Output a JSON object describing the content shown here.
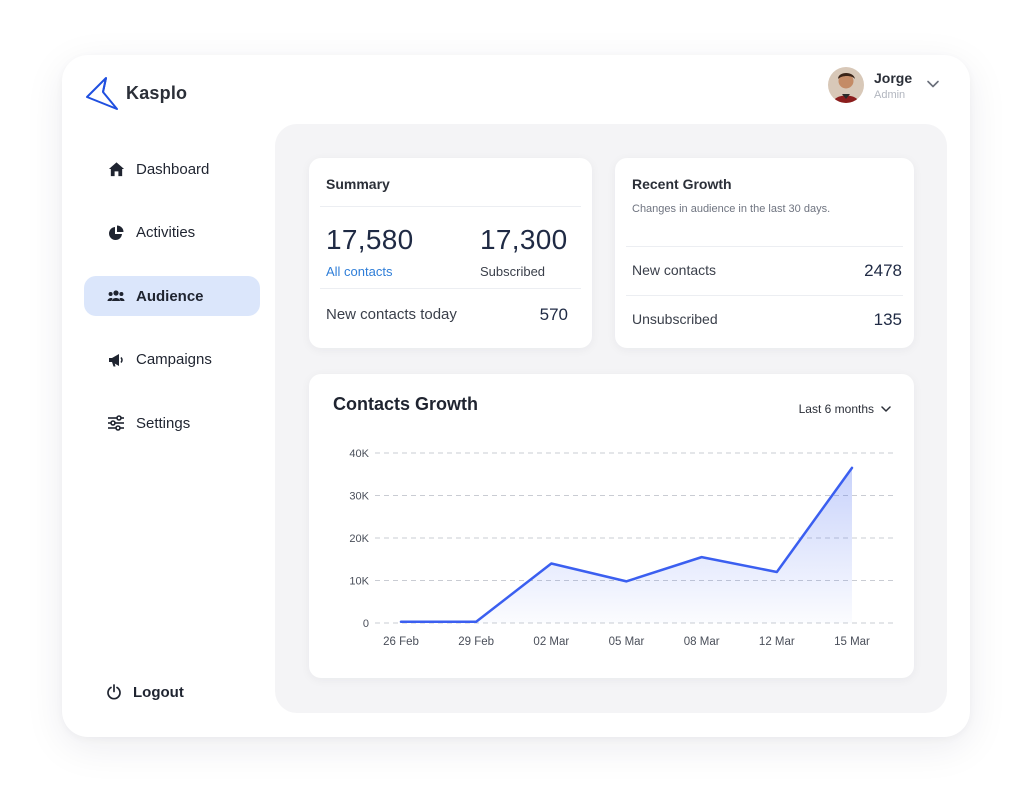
{
  "brand": {
    "name": "Kasplo"
  },
  "user": {
    "name": "Jorge",
    "role": "Admin"
  },
  "nav": {
    "items": [
      {
        "label": "Dashboard",
        "icon": "home-icon"
      },
      {
        "label": "Activities",
        "icon": "pie-chart-icon"
      },
      {
        "label": "Audience",
        "icon": "users-icon",
        "active": true
      },
      {
        "label": "Campaigns",
        "icon": "megaphone-icon"
      },
      {
        "label": "Settings",
        "icon": "sliders-icon"
      }
    ],
    "logout": "Logout"
  },
  "summary": {
    "title": "Summary",
    "all_contacts_value": "17,580",
    "all_contacts_label": "All contacts",
    "subscribed_value": "17,300",
    "subscribed_label": "Subscribed",
    "new_today_label": "New contacts today",
    "new_today_value": "570"
  },
  "recent": {
    "title": "Recent Growth",
    "subtitle": "Changes in audience in the last 30 days.",
    "new_contacts_label": "New contacts",
    "new_contacts_value": "2478",
    "unsubscribed_label": "Unsubscribed",
    "unsubscribed_value": "135"
  },
  "chart_card": {
    "title": "Contacts Growth",
    "range_label": "Last 6 months"
  },
  "colors": {
    "accent": "#3b5ff0",
    "active_nav_bg": "#dbe6fb",
    "link": "#2f7ed8"
  },
  "chart_data": {
    "type": "area",
    "title": "Contacts Growth",
    "x": [
      "26 Feb",
      "29 Feb",
      "02 Mar",
      "05 Mar",
      "08 Mar",
      "12 Mar",
      "15 Mar"
    ],
    "series": [
      {
        "values": [
          300,
          300,
          14000,
          9800,
          15500,
          12000,
          36500
        ]
      }
    ],
    "yticks": [
      "0",
      "10K",
      "20K",
      "30K",
      "40K"
    ],
    "ylim": [
      0,
      40000
    ],
    "grid": true
  }
}
